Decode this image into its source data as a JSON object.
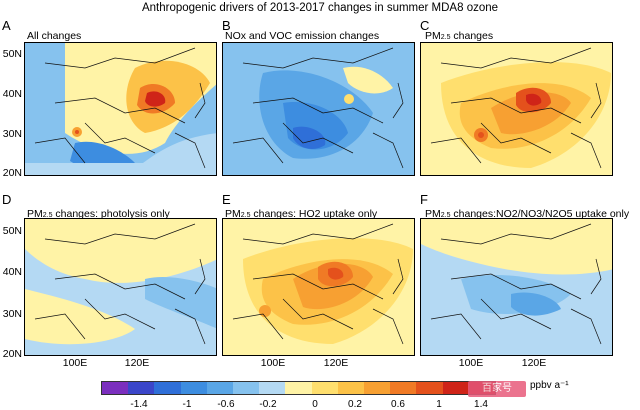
{
  "title": "Anthropogenic drivers of 2013-2017 changes in summer MDA8 ozone",
  "panels": [
    {
      "letter": "A",
      "caption": "All changes",
      "caption_html": ""
    },
    {
      "letter": "B",
      "caption": "NOx and VOC emission changes"
    },
    {
      "letter": "C",
      "caption_main": "PM",
      "caption_sub": "2.5",
      "caption_rest": " changes"
    },
    {
      "letter": "D",
      "caption_main": "PM",
      "caption_sub": "2.5",
      "caption_rest": " changes: photolysis only"
    },
    {
      "letter": "E",
      "caption_main": "PM",
      "caption_sub": "2.5",
      "caption_rest": " changes: HO2 uptake only"
    },
    {
      "letter": "F",
      "caption_main": "PM",
      "caption_sub": "2.5",
      "caption_rest": " changes:NO2/NO3/N2O5 uptake only"
    }
  ],
  "lat_labels": [
    "50N",
    "40N",
    "30N",
    "20N"
  ],
  "lon_labels": [
    "100E",
    "120E"
  ],
  "colorbar": {
    "ticks": [
      "-1.4",
      "-1",
      "-0.6",
      "-0.2",
      "0",
      "0.2",
      "0.6",
      "1",
      "1.4"
    ],
    "colors": [
      "#7b2fbe",
      "#3b46c9",
      "#2f6fd8",
      "#3d8de0",
      "#5aa6e6",
      "#86c2ee",
      "#b4d9f3",
      "#fff3a6",
      "#ffdf6e",
      "#fcc248",
      "#f7a032",
      "#f07a25",
      "#e4511c",
      "#cf2418",
      "#b30f12"
    ],
    "units": "ppbv a⁻¹"
  },
  "watermark": "百家号"
}
